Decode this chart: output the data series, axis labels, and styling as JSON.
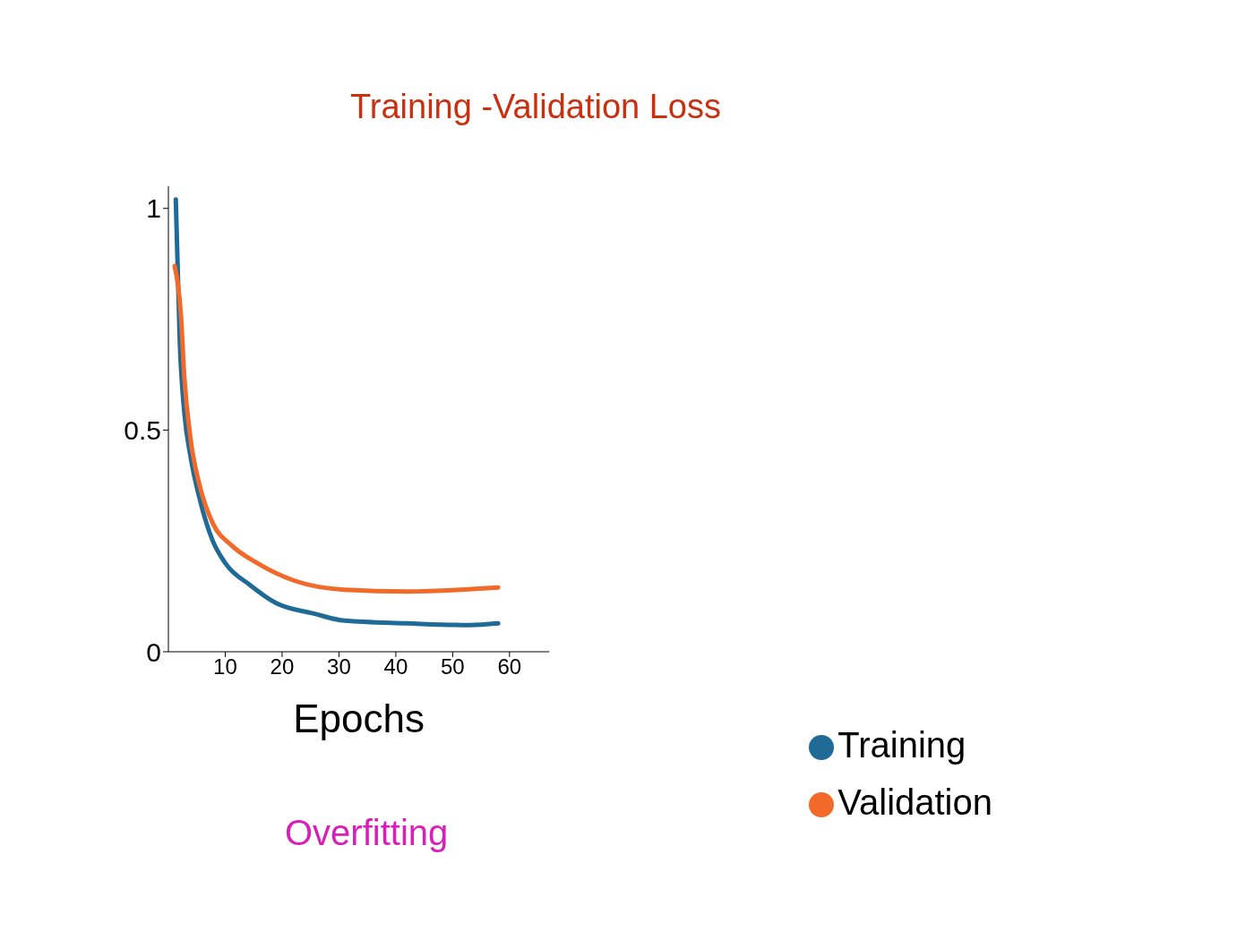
{
  "chart_data": {
    "type": "line",
    "title": "Training -Validation Loss",
    "xlabel": "Epochs",
    "annotations": [
      "Overfitting"
    ],
    "xlim": [
      0,
      67
    ],
    "xticks": [
      10,
      20,
      30,
      40,
      50,
      60
    ],
    "ylim": [
      0,
      1.05
    ],
    "yticks": [
      0,
      {
        "value": 0.5,
        "label": "0.5"
      },
      1
    ],
    "grid": false,
    "legend": "bottom right",
    "marker": "none",
    "line_style": "solid",
    "series": [
      {
        "name": "Training",
        "color": "#1f6a96",
        "x": [
          1.3,
          2,
          2.8,
          3.9,
          5.6,
          7.8,
          10,
          14.4,
          18.9,
          25.6,
          31,
          42,
          53,
          58
        ],
        "values": [
          1.02,
          0.7,
          0.54,
          0.44,
          0.34,
          0.25,
          0.2,
          0.15,
          0.11,
          0.086,
          0.07,
          0.064,
          0.06,
          0.064
        ]
      },
      {
        "name": "Validation",
        "color": "#f26a2a",
        "x": [
          1.1,
          2.2,
          2.8,
          3.9,
          5.6,
          7.8,
          11.1,
          15.6,
          22.2,
          31,
          42,
          58
        ],
        "values": [
          0.87,
          0.76,
          0.62,
          0.48,
          0.37,
          0.29,
          0.24,
          0.2,
          0.16,
          0.14,
          0.136,
          0.145
        ]
      }
    ]
  }
}
